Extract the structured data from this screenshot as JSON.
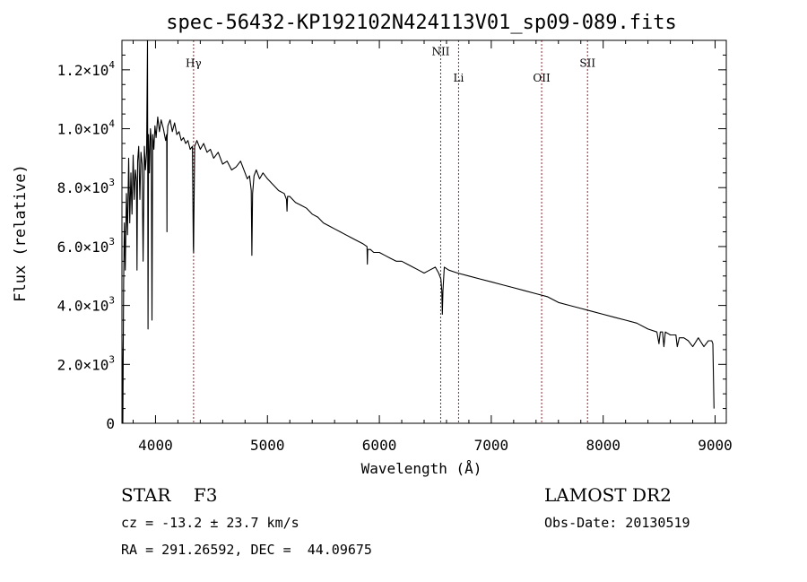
{
  "chart_data": {
    "type": "line",
    "title": "spec-56432-KP192102N424113V01_sp09-089.fits",
    "xlabel": "Wavelength (Å)",
    "ylabel": "Flux (relative)",
    "xlim": [
      3700,
      9100
    ],
    "ylim": [
      0,
      13000
    ],
    "x_ticks": [
      4000,
      5000,
      6000,
      7000,
      8000,
      9000
    ],
    "y_ticks": [
      {
        "value": 0,
        "mantissa": "0",
        "exponent": ""
      },
      {
        "value": 2000,
        "mantissa": "2.0×10",
        "exponent": "3"
      },
      {
        "value": 4000,
        "mantissa": "4.0×10",
        "exponent": "3"
      },
      {
        "value": 6000,
        "mantissa": "6.0×10",
        "exponent": "3"
      },
      {
        "value": 8000,
        "mantissa": "8.0×10",
        "exponent": "3"
      },
      {
        "value": 10000,
        "mantissa": "1.0×10",
        "exponent": "4"
      },
      {
        "value": 12000,
        "mantissa": "1.2×10",
        "exponent": "4"
      }
    ],
    "line_markers": [
      {
        "label": "Hγ",
        "x": 4340,
        "label_y": 12100
      },
      {
        "label": "NII",
        "x": 6548,
        "label_y": 12500
      },
      {
        "label": "Li",
        "x": 6708,
        "label_y": 11600
      },
      {
        "label": "OII",
        "x": 7450,
        "label_y": 11600
      },
      {
        "label": "SII",
        "x": 7860,
        "label_y": 12100
      }
    ],
    "marker_color": "#a0202a",
    "series": [
      {
        "x": [
          3700,
          3708,
          3715,
          3722,
          3730,
          3740,
          3750,
          3760,
          3770,
          3780,
          3790,
          3800,
          3810,
          3820,
          3830,
          3835,
          3840,
          3850,
          3860,
          3870,
          3880,
          3889,
          3900,
          3910,
          3920,
          3928,
          3933,
          3938,
          3945,
          3955,
          3962,
          3968,
          3975,
          3985,
          3995,
          4005,
          4020,
          4035,
          4050,
          4070,
          4090,
          4100,
          4102,
          4104,
          4110,
          4130,
          4150,
          4170,
          4190,
          4210,
          4230,
          4250,
          4270,
          4290,
          4310,
          4330,
          4338,
          4340,
          4342,
          4350,
          4370,
          4400,
          4430,
          4460,
          4490,
          4520,
          4560,
          4600,
          4640,
          4680,
          4720,
          4760,
          4800,
          4820,
          4840,
          4855,
          4861,
          4867,
          4880,
          4900,
          4930,
          4960,
          5000,
          5050,
          5100,
          5150,
          5170,
          5175,
          5180,
          5200,
          5250,
          5300,
          5350,
          5400,
          5450,
          5500,
          5550,
          5600,
          5650,
          5700,
          5750,
          5800,
          5850,
          5890,
          5893,
          5896,
          5920,
          5950,
          6000,
          6050,
          6100,
          6150,
          6200,
          6250,
          6300,
          6350,
          6400,
          6450,
          6500,
          6530,
          6550,
          6558,
          6563,
          6568,
          6580,
          6620,
          6700,
          6800,
          6900,
          7000,
          7100,
          7200,
          7300,
          7400,
          7500,
          7600,
          7700,
          7800,
          7900,
          8000,
          8100,
          8200,
          8300,
          8400,
          8480,
          8498,
          8510,
          8530,
          8542,
          8555,
          8600,
          8650,
          8662,
          8680,
          8720,
          8760,
          8800,
          8850,
          8900,
          8940,
          8960,
          8970,
          8980,
          8990
        ],
        "y": [
          3000,
          0,
          4800,
          6800,
          5200,
          7800,
          6400,
          9000,
          6800,
          8500,
          7100,
          9100,
          7600,
          8600,
          8200,
          5200,
          8900,
          9400,
          7600,
          9200,
          8800,
          5500,
          9400,
          8600,
          9200,
          13000,
          3200,
          9800,
          8500,
          10000,
          9600,
          3500,
          9800,
          9300,
          10100,
          9700,
          10400,
          9900,
          10300,
          10000,
          9600,
          9800,
          6500,
          9700,
          10100,
          10300,
          9900,
          10200,
          9800,
          9900,
          9600,
          9700,
          9500,
          9600,
          9300,
          9400,
          6000,
          5800,
          6500,
          9400,
          9600,
          9300,
          9500,
          9200,
          9300,
          9000,
          9200,
          8800,
          8900,
          8600,
          8700,
          8900,
          8500,
          8300,
          8400,
          7900,
          5700,
          7800,
          8400,
          8600,
          8300,
          8500,
          8300,
          8100,
          7900,
          7800,
          7600,
          7200,
          7700,
          7700,
          7500,
          7400,
          7300,
          7100,
          7000,
          6800,
          6700,
          6600,
          6500,
          6400,
          6300,
          6200,
          6100,
          6000,
          5400,
          5900,
          5900,
          5800,
          5800,
          5700,
          5600,
          5500,
          5500,
          5400,
          5300,
          5200,
          5100,
          5200,
          5300,
          5100,
          4900,
          4500,
          3700,
          4500,
          5300,
          5200,
          5100,
          5000,
          4900,
          4800,
          4700,
          4600,
          4500,
          4400,
          4300,
          4100,
          4000,
          3900,
          3800,
          3700,
          3600,
          3500,
          3400,
          3200,
          3100,
          2700,
          3100,
          3100,
          2600,
          3100,
          3000,
          3000,
          2600,
          2900,
          2900,
          2800,
          2600,
          2900,
          2600,
          2800,
          2800,
          2800,
          2700,
          500
        ]
      }
    ]
  },
  "info": {
    "object": "STAR    F3",
    "redshift": "cz = -13.2 ± 23.7 km/s",
    "coords": "RA = 291.26592, DEC =  44.09675",
    "survey": "LAMOST DR2",
    "obsdate": "Obs-Date: 20130519"
  }
}
